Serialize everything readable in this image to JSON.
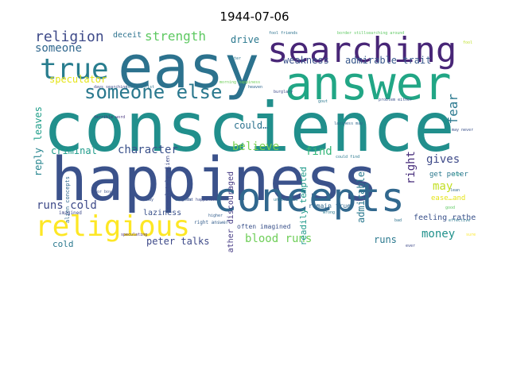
{
  "title": "1944-07-06",
  "words": [
    {
      "text": "conscience",
      "color": "#218f8c"
    },
    {
      "text": "happiness",
      "color": "#3b528b"
    },
    {
      "text": "easy",
      "color": "#2c728e"
    },
    {
      "text": "answer",
      "color": "#21a685"
    },
    {
      "text": "searching",
      "color": "#482677"
    },
    {
      "text": "concepts",
      "color": "#31688e"
    },
    {
      "text": "religious",
      "color": "#fde725"
    },
    {
      "text": "true",
      "color": "#287d8e"
    },
    {
      "text": "someone else",
      "color": "#2a788e"
    },
    {
      "text": "religion",
      "color": "#3e4a89"
    },
    {
      "text": "strength",
      "color": "#5ec962"
    },
    {
      "text": "someone",
      "color": "#31688e"
    },
    {
      "text": "speculator",
      "color": "#e5e419"
    },
    {
      "text": "drive",
      "color": "#2a788e"
    },
    {
      "text": "weakness",
      "color": "#3b528b"
    },
    {
      "text": "admirable trait",
      "color": "#38588c"
    },
    {
      "text": "fear",
      "color": "#2a788e"
    },
    {
      "text": "reply",
      "color": "#25848e"
    },
    {
      "text": "leaves",
      "color": "#1f9e89"
    },
    {
      "text": "criminal",
      "color": "#1e9b8a"
    },
    {
      "text": "character",
      "color": "#3b528b"
    },
    {
      "text": "believe",
      "color": "#7ad151"
    },
    {
      "text": "find",
      "color": "#35b779"
    },
    {
      "text": "gives",
      "color": "#3e4a89"
    },
    {
      "text": "right",
      "color": "#472d7b"
    },
    {
      "text": "could…",
      "color": "#2c728e"
    },
    {
      "text": "may",
      "color": "#c2df23"
    },
    {
      "text": "admirable",
      "color": "#2a788e"
    },
    {
      "text": "runs cold",
      "color": "#3e4a89"
    },
    {
      "text": "blood runs",
      "color": "#6ece58"
    },
    {
      "text": "runs",
      "color": "#2a788e"
    },
    {
      "text": "money",
      "color": "#21918c"
    },
    {
      "text": "peter talks",
      "color": "#3e4a89"
    },
    {
      "text": "cold",
      "color": "#2a788e"
    },
    {
      "text": "laziness",
      "color": "#3b528b"
    },
    {
      "text": "rather discouraged",
      "color": "#443983"
    },
    {
      "text": "readily tempted",
      "color": "#1f9a8a"
    },
    {
      "text": "feeling rather",
      "color": "#3b528b"
    },
    {
      "text": "get peter",
      "color": "#2a788e"
    },
    {
      "text": "deceit",
      "color": "#2c728e"
    },
    {
      "text": "remain true",
      "color": "#31688e"
    },
    {
      "text": "often imagined",
      "color": "#3b528b"
    },
    {
      "text": "alien concepts",
      "color": "#31688e"
    },
    {
      "text": "imagined",
      "color": "#3e4a89"
    },
    {
      "text": "fool friends",
      "color": "#2c728e"
    },
    {
      "text": "border stillsearching around",
      "color": "#5ec962"
    },
    {
      "text": "ease…and",
      "color": "#e5e419"
    },
    {
      "text": "completely alien",
      "color": "#3e4a89"
    },
    {
      "text": "right answer",
      "color": "#355f8d"
    },
    {
      "text": "undermined",
      "color": "#2a788e"
    },
    {
      "text": "speculating",
      "color": "#482878"
    },
    {
      "text": "higher",
      "color": "#355f8d"
    },
    {
      "text": "effective",
      "color": "#2a788e"
    },
    {
      "text": "lean",
      "color": "#31688e"
    },
    {
      "text": "good",
      "color": "#5ec962"
    },
    {
      "text": "may never",
      "color": "#3b528b"
    },
    {
      "text": "terrible word",
      "color": "#46337e"
    },
    {
      "text": "could find",
      "color": "#2a788e"
    },
    {
      "text": "way",
      "color": "#3b528b"
    },
    {
      "text": "scruffs",
      "color": "#31688e"
    },
    {
      "text": "morning happiness",
      "color": "#6ece58"
    },
    {
      "text": "burglary",
      "color": "#3e4a89"
    },
    {
      "text": "gout",
      "color": "#2a788e"
    },
    {
      "text": "problem either",
      "color": "#3b528b"
    },
    {
      "text": "laziness may",
      "color": "#31688e"
    },
    {
      "text": "peter",
      "color": "#2a788e"
    },
    {
      "text": "days searching",
      "color": "#3e4a89"
    },
    {
      "text": "jesus christ",
      "color": "#2c728e"
    },
    {
      "text": "heaven",
      "color": "#31688e"
    },
    {
      "text": "great happiness",
      "color": "#3e4a89"
    },
    {
      "text": "fool",
      "color": "#bddf26"
    },
    {
      "text": "wrong",
      "color": "#2a788e"
    },
    {
      "text": "poor boy",
      "color": "#3b528b"
    },
    {
      "text": "sure",
      "color": "#fde725"
    },
    {
      "text": "bad",
      "color": "#2c728e"
    },
    {
      "text": "sin",
      "color": "#1f9e89"
    },
    {
      "text": "ever",
      "color": "#3e4a89"
    }
  ]
}
